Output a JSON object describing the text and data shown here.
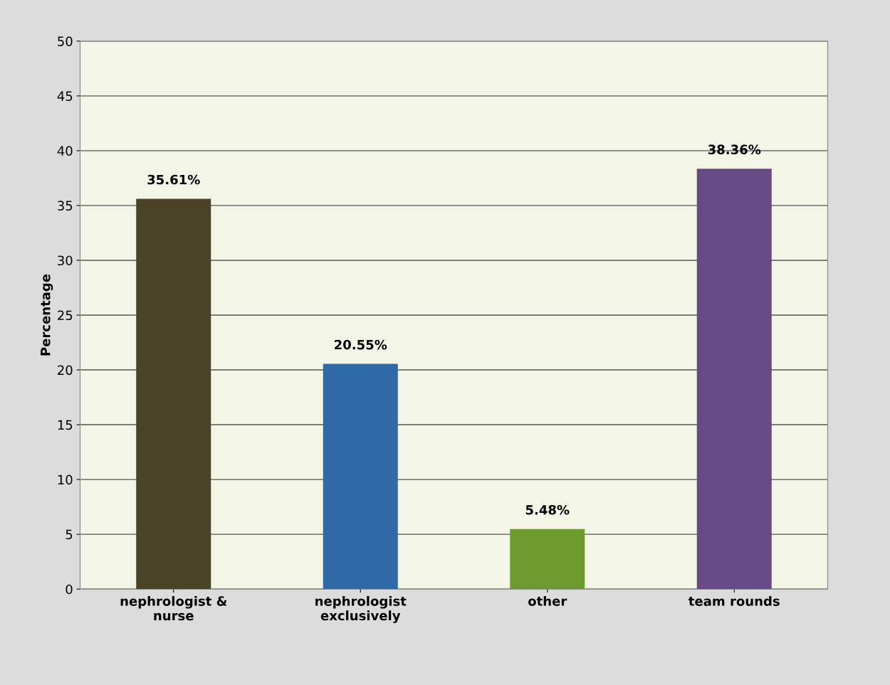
{
  "chart_data": {
    "type": "bar",
    "ylabel": "Percentage",
    "categories": [
      "nephrologist &\nnurse",
      "nephrologist\nexclusively",
      "other",
      "team rounds"
    ],
    "values": [
      35.61,
      20.55,
      5.48,
      38.36
    ],
    "value_labels": [
      "35.61%",
      "20.55%",
      "5.48%",
      "38.36%"
    ],
    "colors": [
      "#4a4327",
      "#2f69a8",
      "#6f9a30",
      "#654a85"
    ],
    "ylim": [
      0,
      50
    ],
    "yticks": [
      0,
      5,
      10,
      15,
      20,
      25,
      30,
      35,
      40,
      45,
      50
    ],
    "grid": "y"
  }
}
